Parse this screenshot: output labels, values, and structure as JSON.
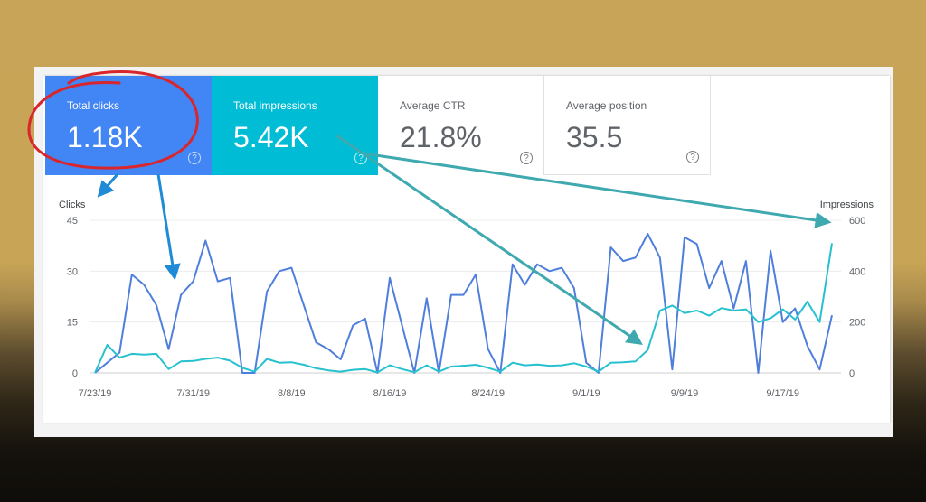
{
  "metrics": {
    "clicks": {
      "label": "Total clicks",
      "value": "1.18K",
      "help": "?"
    },
    "impressions": {
      "label": "Total impressions",
      "value": "5.42K",
      "help": "?"
    },
    "ctr": {
      "label": "Average CTR",
      "value": "21.8%",
      "help": "?"
    },
    "position": {
      "label": "Average position",
      "value": "35.5",
      "help": "?"
    }
  },
  "colors": {
    "clicks": "#4f7fdc",
    "impressions": "#26c1cf",
    "annotation_circle": "#d9262c",
    "arrow_blue": "#1f8ad6",
    "arrow_teal": "#3fa9b0"
  },
  "chart_data": {
    "type": "line",
    "x_tick_labels": [
      "7/23/19",
      "7/31/19",
      "8/8/19",
      "8/16/19",
      "8/24/19",
      "9/1/19",
      "9/9/19",
      "9/17/19"
    ],
    "ylabel_left": "Clicks",
    "ylabel_right": "Impressions",
    "yticks_left": [
      "45",
      "30",
      "15",
      "0"
    ],
    "yticks_right": [
      "600",
      "400",
      "200",
      "0"
    ],
    "ylim_left": [
      0,
      45
    ],
    "ylim_right": [
      0,
      600
    ],
    "grid": true,
    "x_start": "2019-07-23",
    "x_end": "2019-09-24",
    "series": [
      {
        "name": "Clicks",
        "axis": "left",
        "values": [
          0,
          3,
          6,
          29,
          26,
          20,
          7,
          23,
          27,
          39,
          27,
          28,
          0,
          0,
          24,
          30,
          31,
          20,
          9,
          7,
          4,
          14,
          16,
          0,
          28,
          14,
          0,
          22,
          0,
          23,
          23,
          29,
          7,
          0,
          32,
          26,
          32,
          30,
          31,
          25,
          3,
          0,
          37,
          33,
          34,
          41,
          34,
          1,
          40,
          38,
          25,
          33,
          19,
          33,
          0,
          36,
          15,
          19,
          8,
          1,
          17
        ]
      },
      {
        "name": "Impressions",
        "axis": "right",
        "values": [
          0,
          110,
          60,
          75,
          72,
          75,
          15,
          45,
          47,
          55,
          60,
          48,
          20,
          5,
          55,
          40,
          42,
          32,
          18,
          10,
          5,
          12,
          15,
          2,
          30,
          15,
          3,
          30,
          5,
          25,
          28,
          32,
          20,
          5,
          40,
          30,
          33,
          28,
          30,
          38,
          25,
          5,
          40,
          42,
          45,
          90,
          245,
          265,
          235,
          245,
          225,
          255,
          245,
          250,
          200,
          215,
          250,
          210,
          280,
          200,
          510
        ]
      }
    ]
  }
}
